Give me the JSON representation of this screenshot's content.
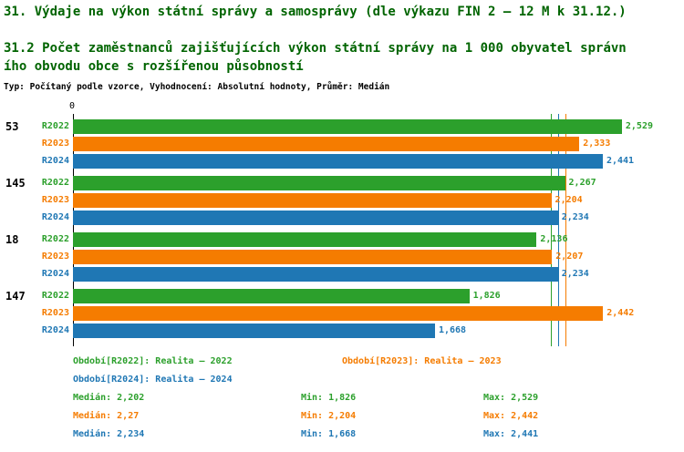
{
  "header": {
    "title": "31. Výdaje na výkon státní správy a samosprávy (dle výkazu FIN 2 – 12 M k 31.12.)",
    "subtitle_line1": "31.2 Počet zaměstnanců zajišťujících výkon státní správy na 1 000 obyvatel správn",
    "subtitle_line2": "ího obvodu obce s rozšířenou působností",
    "meta": "Typ: Počítaný podle vzorce, Vyhodnocení: Absolutní hodnoty, Průměr: Medián"
  },
  "colors": {
    "title": "#006400",
    "axis": "#000000",
    "r2022": "#2ca02c",
    "r2023": "#f57c00",
    "r2024": "#1f77b4"
  },
  "chart_data": {
    "type": "bar",
    "orientation": "horizontal",
    "title": "31. Výdaje na výkon státní správy a samosprávy (dle výkazu FIN 2 – 12 M k 31.12.)",
    "subtitle": "31.2 Počet zaměstnanců zajišťujících výkon státní správy na 1 000 obyvatel správního obvodu obce s rozšířenou působností",
    "value_axis": {
      "min": 0,
      "max": 2.56,
      "zero_label": "0",
      "gridlines": false
    },
    "groups": [
      "53",
      "145",
      "18",
      "147"
    ],
    "series": [
      {
        "name": "R2022",
        "color_key": "r2022",
        "values": [
          2.529,
          2.267,
          2.136,
          1.826
        ],
        "value_labels": [
          "2,529",
          "2,267",
          "2,136",
          "1,826"
        ],
        "median": 2.202
      },
      {
        "name": "R2023",
        "color_key": "r2023",
        "values": [
          2.333,
          2.204,
          2.207,
          2.442
        ],
        "value_labels": [
          "2,333",
          "2,204",
          "2,207",
          "2,442"
        ],
        "median": 2.27
      },
      {
        "name": "R2024",
        "color_key": "r2024",
        "values": [
          2.441,
          2.234,
          2.234,
          1.668
        ],
        "value_labels": [
          "2,441",
          "2,234",
          "2,234",
          "1,668"
        ],
        "median": 2.234
      }
    ],
    "summary": {
      "R2022": {
        "median": 2.202,
        "min": 1.826,
        "max": 2.529
      },
      "R2023": {
        "median": 2.27,
        "min": 2.204,
        "max": 2.442
      },
      "R2024": {
        "median": 2.234,
        "min": 1.668,
        "max": 2.441
      }
    }
  },
  "legend": [
    {
      "label": "Období[R2022]: Realita – 2022",
      "color_key": "r2022"
    },
    {
      "label": "Období[R2023]: Realita – 2023",
      "color_key": "r2023"
    },
    {
      "label": "Období[R2024]: Realita – 2024",
      "color_key": "r2024"
    }
  ],
  "stats": [
    {
      "median": "Medián: 2,202",
      "min": "Min: 1,826",
      "max": "Max: 2,529",
      "color_key": "r2022"
    },
    {
      "median": "Medián: 2,27",
      "min": "Min: 2,204",
      "max": "Max: 2,442",
      "color_key": "r2023"
    },
    {
      "median": "Medián: 2,234",
      "min": "Min: 1,668",
      "max": "Max: 2,441",
      "color_key": "r2024"
    }
  ]
}
